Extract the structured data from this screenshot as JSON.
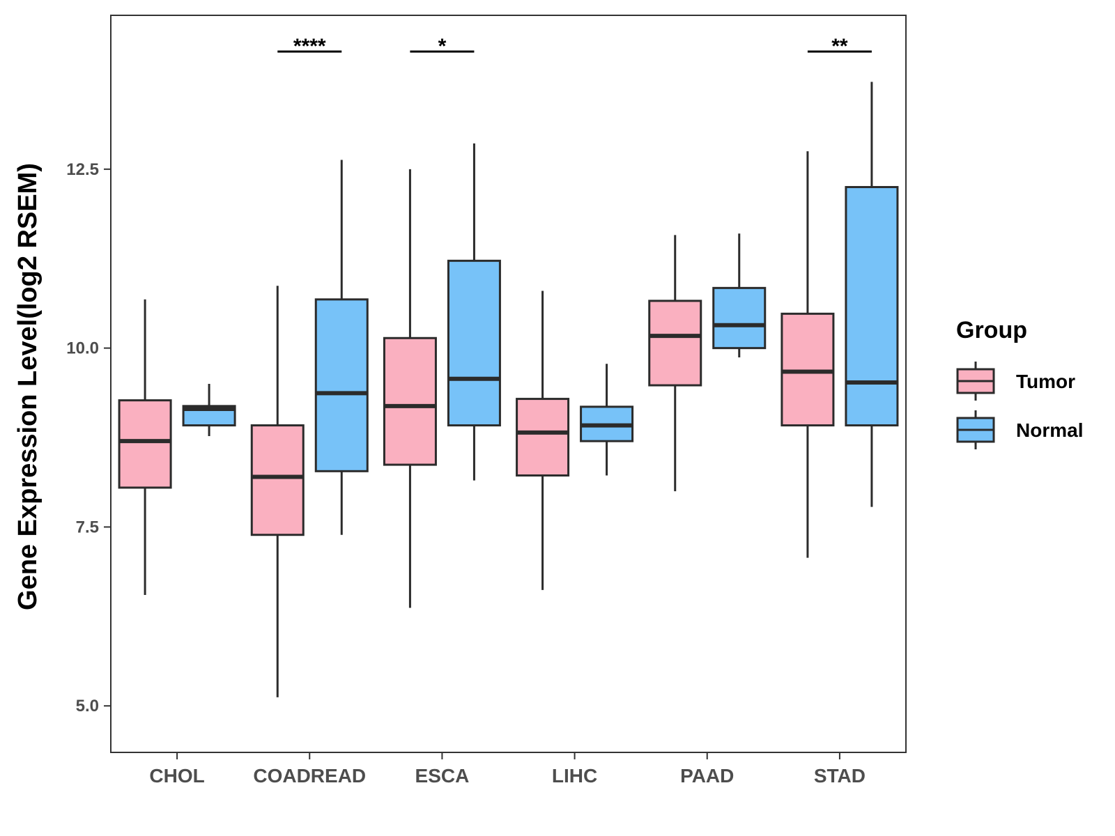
{
  "chart_data": {
    "type": "boxplot",
    "title": "",
    "xlabel": "",
    "ylabel": "Gene Expression Level(log2 RSEM)",
    "ylim": [
      4.35,
      14.65
    ],
    "yticks": [
      5.0,
      7.5,
      10.0,
      12.5
    ],
    "ytick_labels": [
      "5.0",
      "7.5",
      "10.0",
      "12.5"
    ],
    "grid": false,
    "legend_position": "right",
    "legend": {
      "title": "Group",
      "entries": [
        {
          "name": "Tumor",
          "color": "#FAB0C0"
        },
        {
          "name": "Normal",
          "color": "#77C2F8"
        }
      ]
    },
    "categories": [
      "CHOL",
      "COADREAD",
      "ESCA",
      "LIHC",
      "PAAD",
      "STAD"
    ],
    "series": [
      {
        "name": "Tumor",
        "color": "#FAB0C0",
        "boxes": [
          {
            "min": 6.55,
            "q1": 8.05,
            "median": 8.7,
            "q3": 9.27,
            "max": 10.68
          },
          {
            "min": 5.12,
            "q1": 7.39,
            "median": 8.2,
            "q3": 8.92,
            "max": 10.87
          },
          {
            "min": 6.37,
            "q1": 8.37,
            "median": 9.19,
            "q3": 10.14,
            "max": 12.5
          },
          {
            "min": 6.62,
            "q1": 8.22,
            "median": 8.82,
            "q3": 9.29,
            "max": 10.8
          },
          {
            "min": 8.0,
            "q1": 9.48,
            "median": 10.17,
            "q3": 10.66,
            "max": 11.58
          },
          {
            "min": 7.07,
            "q1": 8.92,
            "median": 9.67,
            "q3": 10.48,
            "max": 12.75
          }
        ]
      },
      {
        "name": "Normal",
        "color": "#77C2F8",
        "boxes": [
          {
            "min": 8.77,
            "q1": 8.92,
            "median": 9.15,
            "q3": 9.19,
            "max": 9.5
          },
          {
            "min": 7.39,
            "q1": 8.28,
            "median": 9.37,
            "q3": 10.68,
            "max": 12.63
          },
          {
            "min": 8.15,
            "q1": 8.92,
            "median": 9.57,
            "q3": 11.22,
            "max": 12.86
          },
          {
            "min": 8.22,
            "q1": 8.7,
            "median": 8.92,
            "q3": 9.18,
            "max": 9.78
          },
          {
            "min": 9.87,
            "q1": 10.0,
            "median": 10.32,
            "q3": 10.84,
            "max": 11.6
          },
          {
            "min": 7.78,
            "q1": 8.92,
            "median": 9.52,
            "q3": 12.25,
            "max": 13.72
          }
        ]
      }
    ],
    "annotations": [
      {
        "category": "COADREAD",
        "label": "****"
      },
      {
        "category": "ESCA",
        "label": "*"
      },
      {
        "category": "STAD",
        "label": "**"
      }
    ]
  },
  "style": {
    "box_stroke": "#2b2b2b",
    "panel_border": "#333333",
    "tick_color": "#333333"
  }
}
